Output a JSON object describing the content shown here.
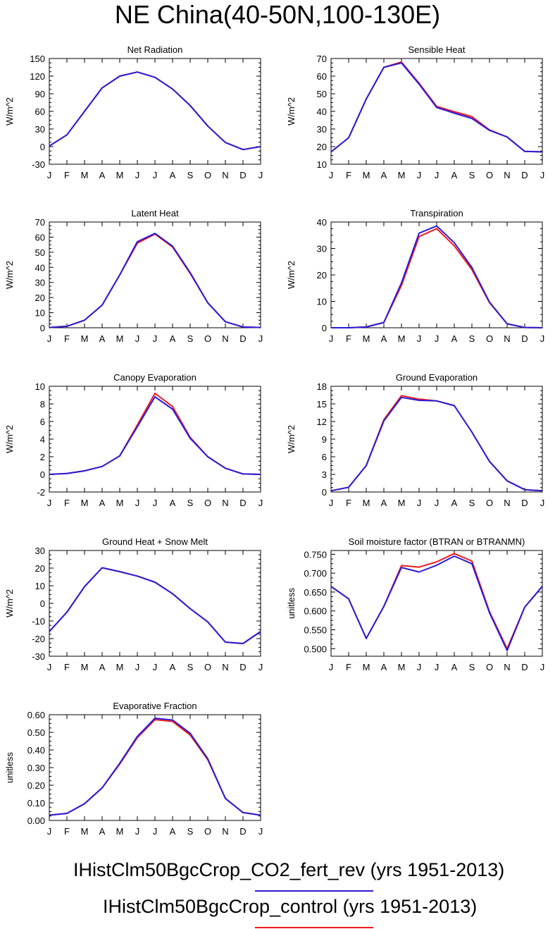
{
  "page": {
    "title": "NE China(40-50N,100-130E)"
  },
  "legend": [
    {
      "label": "IHistClm50BgcCrop_CO2_fert_rev (yrs 1951-2013)",
      "color": "#2a1bd8"
    },
    {
      "label": "IHistClm50BgcCrop_control (yrs 1951-2013)",
      "color": "#f0191e"
    }
  ],
  "chart_data": [
    {
      "type": "line",
      "title": "Net Radiation",
      "ylabel": "W/m^2",
      "x": [
        "J",
        "F",
        "M",
        "A",
        "M",
        "J",
        "J",
        "A",
        "S",
        "O",
        "N",
        "D",
        "J"
      ],
      "ylim": [
        -30,
        150
      ],
      "yticks": [
        -30,
        0,
        30,
        60,
        90,
        120,
        150
      ],
      "ytick_labels": [
        "-30",
        "0",
        "30",
        "60",
        "90",
        "120",
        "150"
      ],
      "series": [
        {
          "color": "#f0191e",
          "values": [
            1,
            20,
            60,
            100,
            120,
            127,
            118,
            98,
            70,
            35,
            7,
            -5,
            0
          ]
        },
        {
          "color": "#2a1bd8",
          "values": [
            1,
            20,
            60,
            100,
            120,
            127,
            118,
            98,
            70,
            35,
            7,
            -5,
            0
          ]
        }
      ]
    },
    {
      "type": "line",
      "title": "Sensible Heat",
      "ylabel": "W/m^2",
      "x": [
        "J",
        "F",
        "M",
        "A",
        "M",
        "J",
        "J",
        "A",
        "S",
        "O",
        "N",
        "D",
        "J"
      ],
      "ylim": [
        10,
        70
      ],
      "yticks": [
        10,
        20,
        30,
        40,
        50,
        60,
        70
      ],
      "ytick_labels": [
        "10",
        "20",
        "30",
        "40",
        "50",
        "60",
        "70"
      ],
      "series": [
        {
          "color": "#f0191e",
          "values": [
            17,
            25,
            47,
            65,
            68,
            56,
            42.8,
            39.8,
            37,
            29.5,
            25.5,
            17.3,
            17
          ]
        },
        {
          "color": "#2a1bd8",
          "values": [
            17,
            25,
            47,
            65,
            67.5,
            55.5,
            42.2,
            39,
            36,
            29.2,
            25.5,
            17.3,
            17
          ]
        }
      ]
    },
    {
      "type": "line",
      "title": "Latent Heat",
      "ylabel": "W/m^2",
      "x": [
        "J",
        "F",
        "M",
        "A",
        "M",
        "J",
        "J",
        "A",
        "S",
        "O",
        "N",
        "D",
        "J"
      ],
      "ylim": [
        0,
        70
      ],
      "yticks": [
        0,
        10,
        20,
        30,
        40,
        50,
        60,
        70
      ],
      "ytick_labels": [
        "0",
        "10",
        "20",
        "30",
        "40",
        "50",
        "60",
        "70"
      ],
      "series": [
        {
          "color": "#f0191e",
          "values": [
            0.2,
            1,
            5,
            15,
            35,
            56,
            62,
            53.5,
            36,
            16.5,
            4,
            0.5,
            0.2
          ]
        },
        {
          "color": "#2a1bd8",
          "values": [
            0.2,
            1,
            5,
            15,
            35,
            57,
            62.5,
            54,
            36.5,
            16.5,
            4,
            0.5,
            0.2
          ]
        }
      ]
    },
    {
      "type": "line",
      "title": "Transpiration",
      "ylabel": "W/m^2",
      "x": [
        "J",
        "F",
        "M",
        "A",
        "M",
        "J",
        "J",
        "A",
        "S",
        "O",
        "N",
        "D",
        "J"
      ],
      "ylim": [
        0,
        40
      ],
      "yticks": [
        0,
        10,
        20,
        30,
        40
      ],
      "ytick_labels": [
        "0",
        "10",
        "20",
        "30",
        "40"
      ],
      "series": [
        {
          "color": "#f0191e",
          "values": [
            0,
            0,
            0.3,
            2,
            16,
            34.5,
            37.5,
            31,
            22,
            9.5,
            1.5,
            0.1,
            0
          ]
        },
        {
          "color": "#2a1bd8",
          "values": [
            0,
            0,
            0.3,
            2,
            17,
            35.8,
            38.5,
            32.2,
            22.8,
            9.7,
            1.5,
            0.1,
            0
          ]
        }
      ]
    },
    {
      "type": "line",
      "title": "Canopy Evaporation",
      "ylabel": "W/m^2",
      "x": [
        "J",
        "F",
        "M",
        "A",
        "M",
        "J",
        "J",
        "A",
        "S",
        "O",
        "N",
        "D",
        "J"
      ],
      "ylim": [
        -2,
        10
      ],
      "yticks": [
        -2,
        0,
        2,
        4,
        6,
        8,
        10
      ],
      "ytick_labels": [
        "-2",
        "0",
        "2",
        "4",
        "6",
        "8",
        "10"
      ],
      "series": [
        {
          "color": "#f0191e",
          "values": [
            0,
            0.1,
            0.4,
            0.9,
            2.1,
            5.6,
            9.2,
            7.7,
            4.2,
            2,
            0.7,
            0.05,
            0
          ]
        },
        {
          "color": "#2a1bd8",
          "values": [
            0,
            0.1,
            0.4,
            0.9,
            2.1,
            5.4,
            8.8,
            7.4,
            4.1,
            2,
            0.7,
            0.05,
            0
          ]
        }
      ]
    },
    {
      "type": "line",
      "title": "Ground Evaporation",
      "ylabel": "W/m^2",
      "x": [
        "J",
        "F",
        "M",
        "A",
        "M",
        "J",
        "J",
        "A",
        "S",
        "O",
        "N",
        "D",
        "J"
      ],
      "ylim": [
        0,
        18
      ],
      "yticks": [
        0,
        3,
        6,
        9,
        12,
        15,
        18
      ],
      "ytick_labels": [
        "0",
        "3",
        "6",
        "9",
        "12",
        "15",
        "18"
      ],
      "series": [
        {
          "color": "#f0191e",
          "values": [
            0.2,
            0.8,
            4.5,
            12.3,
            16.4,
            15.8,
            15.5,
            14.7,
            10.2,
            5.2,
            1.9,
            0.4,
            0.2
          ]
        },
        {
          "color": "#2a1bd8",
          "values": [
            0.2,
            0.8,
            4.5,
            12.1,
            16.1,
            15.6,
            15.5,
            14.7,
            10.2,
            5.2,
            1.9,
            0.4,
            0.2
          ]
        }
      ]
    },
    {
      "type": "line",
      "title": "Ground Heat + Snow Melt",
      "ylabel": "W/m^2",
      "x": [
        "J",
        "F",
        "M",
        "A",
        "M",
        "J",
        "J",
        "A",
        "S",
        "O",
        "N",
        "D",
        "J"
      ],
      "ylim": [
        -30,
        30
      ],
      "yticks": [
        -30,
        -20,
        -10,
        0,
        10,
        20,
        30
      ],
      "ytick_labels": [
        "-30",
        "-20",
        "-10",
        "0",
        "10",
        "20",
        "30"
      ],
      "series": [
        {
          "color": "#f0191e",
          "values": [
            -16,
            -5,
            9.5,
            20.2,
            18,
            15.5,
            12,
            5.5,
            -3,
            -10.5,
            -22,
            -22.8,
            -16
          ]
        },
        {
          "color": "#2a1bd8",
          "values": [
            -16,
            -5,
            9.5,
            20.2,
            18,
            15.5,
            12,
            5.5,
            -3,
            -10.5,
            -22,
            -22.8,
            -16
          ]
        }
      ]
    },
    {
      "type": "line",
      "title": "Soil moisture factor (BTRAN or BTRANMN)",
      "ylabel": "unitless",
      "x": [
        "J",
        "F",
        "M",
        "A",
        "M",
        "J",
        "J",
        "A",
        "S",
        "O",
        "N",
        "D",
        "J"
      ],
      "ylim": [
        0.48,
        0.76
      ],
      "yticks": [
        0.5,
        0.55,
        0.6,
        0.65,
        0.7,
        0.75
      ],
      "ytick_labels": [
        "0.500",
        "0.550",
        "0.600",
        "0.650",
        "0.700",
        "0.750"
      ],
      "series": [
        {
          "color": "#f0191e",
          "values": [
            0.665,
            0.632,
            0.527,
            0.612,
            0.72,
            0.716,
            0.73,
            0.752,
            0.732,
            0.598,
            0.5,
            0.61,
            0.665
          ]
        },
        {
          "color": "#2a1bd8",
          "values": [
            0.665,
            0.632,
            0.527,
            0.612,
            0.715,
            0.703,
            0.721,
            0.745,
            0.725,
            0.595,
            0.495,
            0.61,
            0.665
          ]
        }
      ]
    },
    {
      "type": "line",
      "title": "Evaporative Fraction",
      "ylabel": "unitless",
      "x": [
        "J",
        "F",
        "M",
        "A",
        "M",
        "J",
        "J",
        "A",
        "S",
        "O",
        "N",
        "D",
        "J"
      ],
      "ylim": [
        0,
        0.6
      ],
      "yticks": [
        0,
        0.1,
        0.2,
        0.3,
        0.4,
        0.5,
        0.6
      ],
      "ytick_labels": [
        "0.00",
        "0.10",
        "0.20",
        "0.30",
        "0.40",
        "0.50",
        "0.60"
      ],
      "series": [
        {
          "color": "#f0191e",
          "values": [
            0.03,
            0.04,
            0.095,
            0.185,
            0.32,
            0.47,
            0.572,
            0.562,
            0.485,
            0.345,
            0.125,
            0.045,
            0.03
          ]
        },
        {
          "color": "#2a1bd8",
          "values": [
            0.03,
            0.04,
            0.095,
            0.185,
            0.325,
            0.477,
            0.58,
            0.57,
            0.495,
            0.35,
            0.125,
            0.045,
            0.03
          ]
        }
      ]
    }
  ]
}
